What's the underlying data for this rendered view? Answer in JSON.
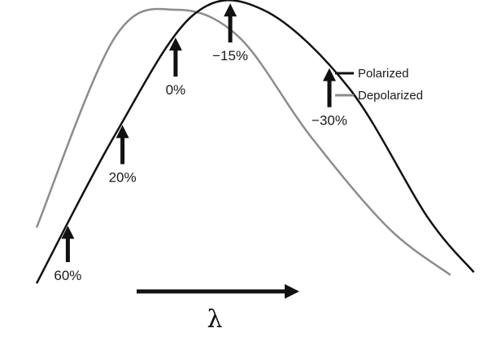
{
  "chart_data": {
    "type": "line",
    "title": "",
    "xlabel": "λ",
    "ylabel": "",
    "axes_visible": false,
    "legend_position": "right",
    "series": [
      {
        "name": "Polarized",
        "color": "#111111",
        "x": [
          0,
          100,
          200,
          290,
          400,
          500,
          560
        ],
        "y": [
          0.02,
          0.55,
          0.98,
          1.0,
          0.72,
          0.26,
          0.06
        ]
      },
      {
        "name": "Depolarized",
        "color": "#8c8c8c",
        "x": [
          0,
          100,
          180,
          260,
          350,
          450,
          530
        ],
        "y": [
          0.22,
          0.9,
          1.0,
          0.9,
          0.55,
          0.22,
          0.05
        ]
      }
    ],
    "annotations": [
      {
        "label": "60%",
        "x": 40
      },
      {
        "label": "20%",
        "x": 110
      },
      {
        "label": "0%",
        "x": 178
      },
      {
        "label": "−15%",
        "x": 248
      },
      {
        "label": "−30%",
        "x": 375
      }
    ]
  }
}
